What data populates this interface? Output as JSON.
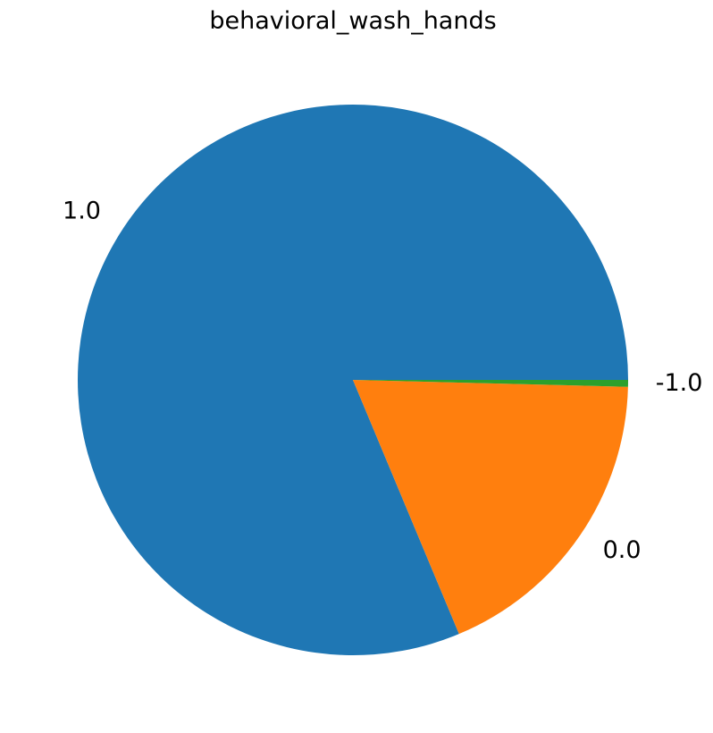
{
  "chart_data": {
    "type": "pie",
    "title": "behavioral_wash_hands",
    "labels": [
      "1.0",
      "0.0",
      "-1.0"
    ],
    "values": [
      81.3,
      18.3,
      0.4
    ],
    "colors": [
      "#1f77b4",
      "#ff7f0e",
      "#2ca02c"
    ],
    "start_angle_deg": 0,
    "direction": "counterclockwise",
    "legend": "none"
  }
}
